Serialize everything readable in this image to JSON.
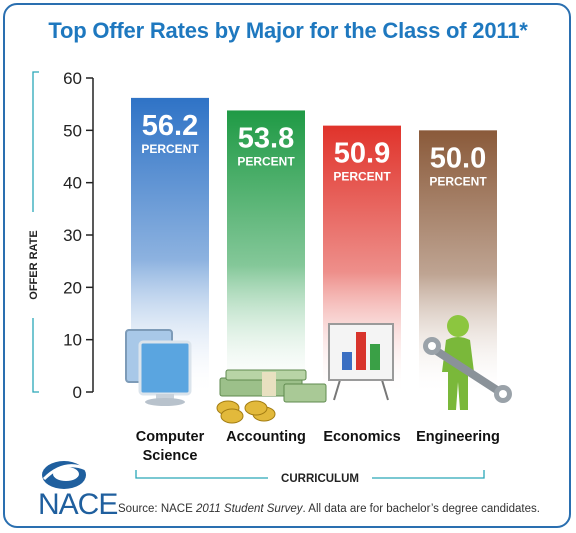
{
  "title": "Top Offer Rates by Major for the Class of 2011*",
  "colors": {
    "title": "#1e78bf",
    "axis": "#222222",
    "bracket": "#2aa7b8",
    "bars": [
      "#2f73c6",
      "#1f9a45",
      "#e0332b",
      "#8a5a3a"
    ]
  },
  "chart_data": {
    "type": "bar",
    "categories": [
      "Computer Science",
      "Accounting",
      "Economics",
      "Engineering"
    ],
    "values": [
      56.2,
      53.8,
      50.9,
      50.0
    ],
    "value_labels": [
      "56.2",
      "53.8",
      "50.9",
      "50.0"
    ],
    "unit_label": "PERCENT",
    "ylabel": "OFFER RATE",
    "xlabel": "CURRICULUM",
    "ylim": [
      0,
      60
    ],
    "yticks": [
      0,
      10,
      20,
      30,
      40,
      50,
      60
    ],
    "category_lines": [
      [
        "Computer",
        "Science"
      ],
      [
        "Accounting"
      ],
      [
        "Economics"
      ],
      [
        "Engineering"
      ]
    ],
    "grid": false,
    "icons": [
      "computer-monitors-icon",
      "money-icon",
      "bar-chart-easel-icon",
      "wrench-figure-icon"
    ]
  },
  "logo_text": "NACE",
  "source": {
    "prefix": "Source: NACE ",
    "italic": "2011 Student Survey",
    "suffix": ". All data are for bachelor’s degree candidates."
  }
}
